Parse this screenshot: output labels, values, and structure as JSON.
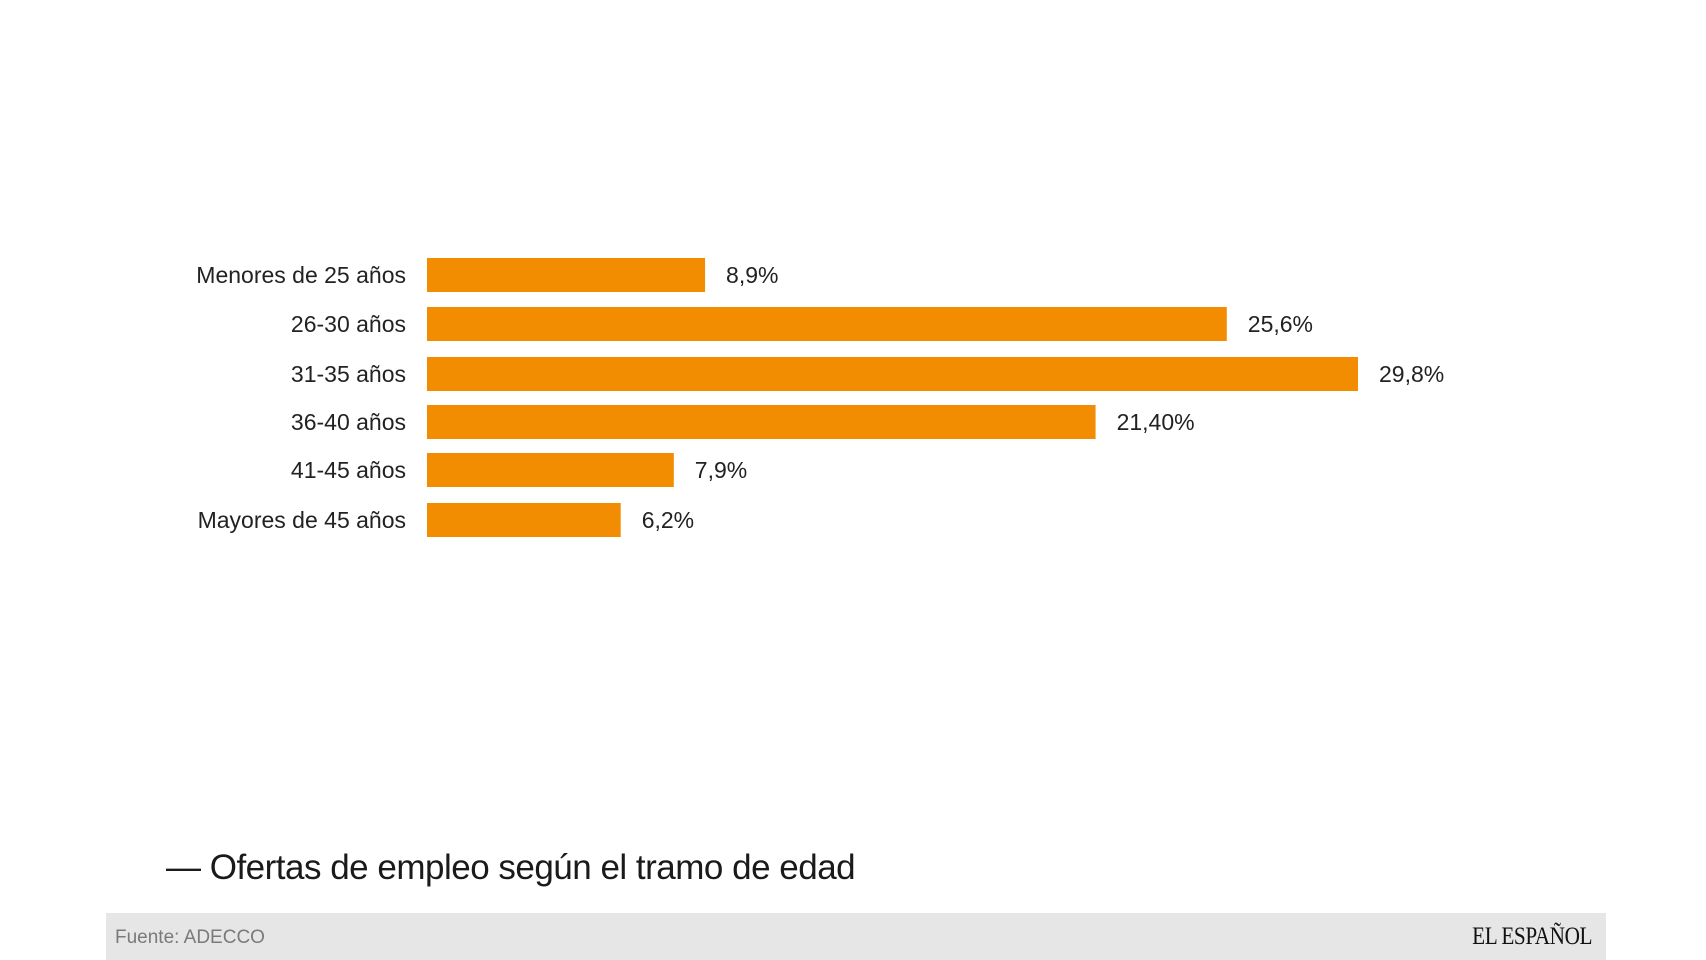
{
  "chart_data": {
    "type": "bar",
    "orientation": "horizontal",
    "title": "— Ofertas de empleo según el tramo de edad",
    "categories": [
      "Menores de 25 años",
      "26-30 años",
      "31-35 años",
      "36-40 años",
      "41-45 años",
      "Mayores de 45 años"
    ],
    "values": [
      8.9,
      25.6,
      29.8,
      21.4,
      7.9,
      6.2
    ],
    "value_labels": [
      "8,9%",
      "25,6%",
      "29,8%",
      "21,40%",
      "7,9%",
      "6,2%"
    ],
    "xlabel": "",
    "ylabel": "",
    "xlim": [
      0,
      29.8
    ],
    "grid": false,
    "legend": "none",
    "bar_color": "#f28c00"
  },
  "footer": {
    "source": "Fuente: ADECCO",
    "brand": "EL ESPAÑOL"
  },
  "colors": {
    "bar": "#f28c00",
    "footer_bg": "#e6e6e6",
    "text": "#222222"
  }
}
